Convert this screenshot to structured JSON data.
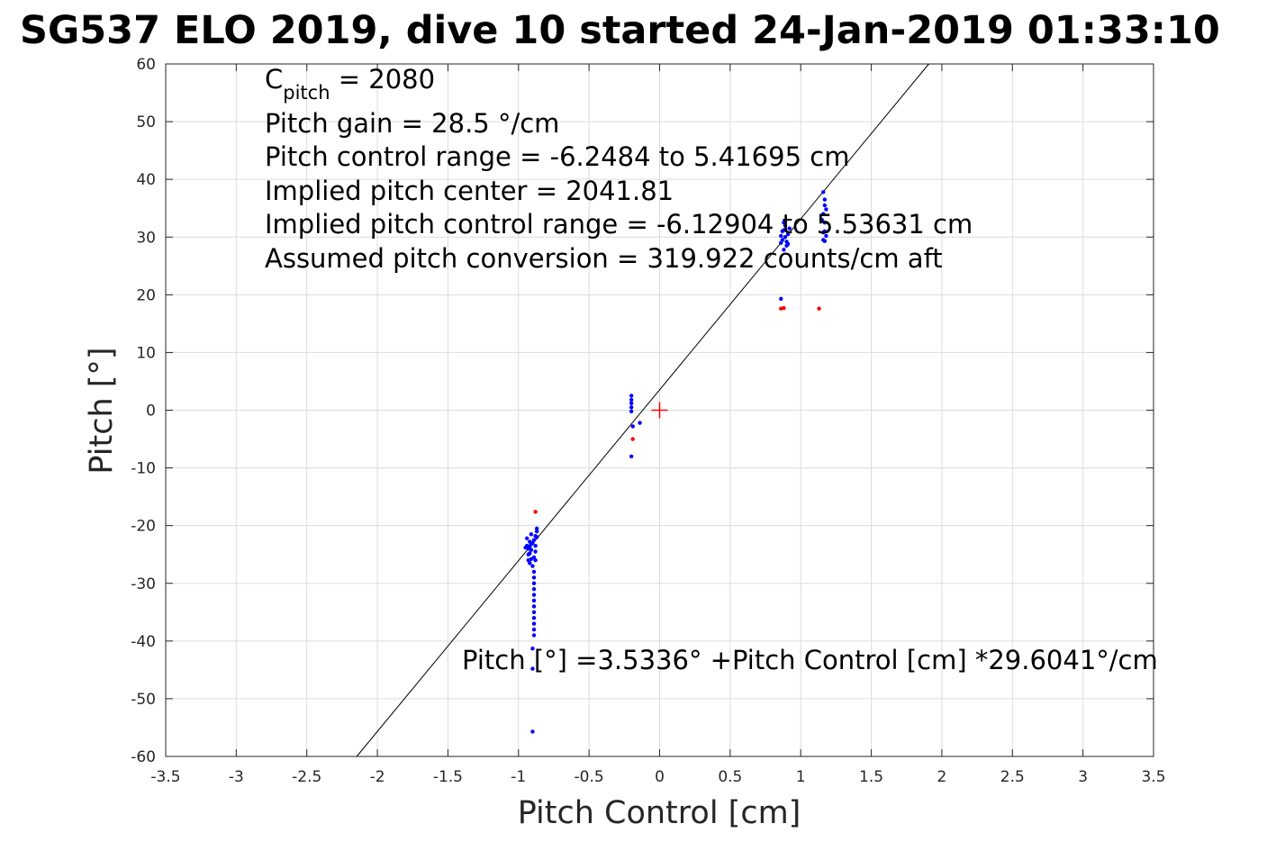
{
  "chart_data": {
    "type": "scatter",
    "title": "SG537 ELO 2019, dive 10 started 24-Jan-2019 01:33:10",
    "xlabel": "Pitch Control [cm]",
    "ylabel": "Pitch [°]",
    "xlim": [
      -3.5,
      3.5
    ],
    "ylim": [
      -60,
      60
    ],
    "xticks": [
      -3.5,
      -3,
      -2.5,
      -2,
      -1.5,
      -1,
      -0.5,
      0,
      0.5,
      1,
      1.5,
      2,
      2.5,
      3,
      3.5
    ],
    "xtick_labels": [
      "-3.5",
      "-3",
      "-2.5",
      "-2",
      "-1.5",
      "-1",
      "-0.5",
      "0",
      "0.5",
      "1",
      "1.5",
      "2",
      "2.5",
      "3",
      "3.5"
    ],
    "yticks": [
      -60,
      -50,
      -40,
      -30,
      -20,
      -10,
      0,
      10,
      20,
      30,
      40,
      50,
      60
    ],
    "ytick_labels": [
      "-60",
      "-50",
      "-40",
      "-30",
      "-20",
      "-10",
      "0",
      "10",
      "20",
      "30",
      "40",
      "50",
      "60"
    ],
    "grid": true,
    "annotations": {
      "cpitch_main": "C",
      "cpitch_sub": "pitch",
      "cpitch_value": " = 2080",
      "gain": "Pitch gain = 28.5 °/cm",
      "range": "Pitch control range = -6.2484 to 5.41695 cm",
      "center": "Implied pitch center = 2041.81",
      "implied_range": "Implied pitch control range = -6.12904 to 5.53631 cm",
      "conversion": "Assumed pitch conversion = 319.922 counts/cm aft",
      "fit_equation": "Pitch [°] =3.5336° +Pitch Control [cm] *29.6041°/cm"
    },
    "fit_line": {
      "intercept": 3.5336,
      "slope": 29.6041,
      "color": "#000000"
    },
    "center_marker": {
      "x": 0,
      "y": 0,
      "color": "#ff0000",
      "marker": "plus"
    },
    "series": [
      {
        "color": "#0000ff",
        "points": [
          [
            -0.94,
            -23.5
          ],
          [
            -0.93,
            -24.0
          ],
          [
            -0.92,
            -22.8
          ],
          [
            -0.93,
            -25.0
          ],
          [
            -0.91,
            -24.2
          ],
          [
            -0.95,
            -23.8
          ],
          [
            -0.92,
            -26.5
          ],
          [
            -0.91,
            -21.5
          ],
          [
            -0.94,
            -22.2
          ],
          [
            -0.92,
            -24.8
          ],
          [
            -0.9,
            -23.0
          ],
          [
            -0.93,
            -26.0
          ],
          [
            -0.89,
            -22.5
          ],
          [
            -0.88,
            -24.5
          ],
          [
            -0.87,
            -21.0
          ],
          [
            -0.87,
            -20.5
          ],
          [
            -0.88,
            -23.5
          ],
          [
            -0.89,
            -25.5
          ],
          [
            -0.88,
            -26.0
          ],
          [
            -0.91,
            -25.8
          ],
          [
            -0.9,
            -27.0
          ],
          [
            -0.89,
            -28.0
          ],
          [
            -0.89,
            -29.0
          ],
          [
            -0.89,
            -30.0
          ],
          [
            -0.89,
            -31.0
          ],
          [
            -0.89,
            -32.0
          ],
          [
            -0.89,
            -33.0
          ],
          [
            -0.89,
            -34.0
          ],
          [
            -0.89,
            -35.0
          ],
          [
            -0.89,
            -36.0
          ],
          [
            -0.89,
            -37.0
          ],
          [
            -0.89,
            -38.0
          ],
          [
            -0.89,
            -39.0
          ],
          [
            -0.9,
            -41.3
          ],
          [
            -0.9,
            -44.8
          ],
          [
            -0.9,
            -55.7
          ],
          [
            -0.88,
            -21.8
          ],
          [
            -0.91,
            -23.2
          ],
          [
            -0.87,
            -22.0
          ],
          [
            -0.92,
            -23.6
          ],
          [
            -0.2,
            2.5
          ],
          [
            -0.2,
            1.8
          ],
          [
            -0.2,
            1.2
          ],
          [
            -0.2,
            0.5
          ],
          [
            -0.2,
            -0.2
          ],
          [
            -0.19,
            -2.8
          ],
          [
            -0.14,
            -2.2
          ],
          [
            -0.2,
            -8.0
          ],
          [
            0.86,
            19.3
          ],
          [
            0.86,
            29.0
          ],
          [
            0.87,
            31.0
          ],
          [
            0.88,
            32.5
          ],
          [
            0.89,
            30.0
          ],
          [
            0.9,
            28.5
          ],
          [
            0.91,
            30.5
          ],
          [
            0.88,
            27.8
          ],
          [
            0.87,
            29.5
          ],
          [
            0.92,
            31.5
          ],
          [
            0.89,
            32.0
          ],
          [
            0.9,
            29.2
          ],
          [
            0.86,
            30.2
          ],
          [
            0.91,
            28.8
          ],
          [
            0.88,
            31.2
          ],
          [
            1.16,
            29.5
          ],
          [
            1.17,
            31.0
          ],
          [
            1.17,
            32.5
          ],
          [
            1.16,
            34.0
          ],
          [
            1.17,
            35.5
          ],
          [
            1.17,
            36.5
          ],
          [
            1.16,
            37.8
          ],
          [
            1.18,
            30.2
          ],
          [
            1.15,
            33.0
          ],
          [
            1.18,
            34.8
          ],
          [
            1.16,
            30.8
          ],
          [
            1.17,
            29.3
          ]
        ]
      },
      {
        "color": "#ff0000",
        "points": [
          [
            -0.88,
            -17.6
          ],
          [
            -0.19,
            -5.0
          ],
          [
            0.86,
            17.6
          ],
          [
            0.88,
            17.7
          ],
          [
            1.13,
            17.6
          ]
        ]
      }
    ]
  }
}
